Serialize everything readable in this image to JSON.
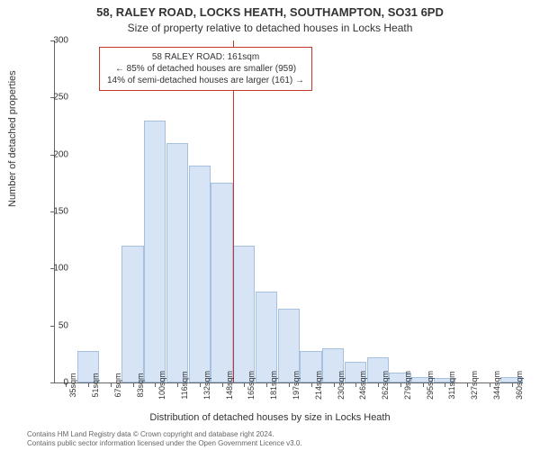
{
  "title_main": "58, RALEY ROAD, LOCKS HEATH, SOUTHAMPTON, SO31 6PD",
  "title_sub": "Size of property relative to detached houses in Locks Heath",
  "ylabel": "Number of detached properties",
  "xlabel": "Distribution of detached houses by size in Locks Heath",
  "chart": {
    "type": "histogram",
    "ylim": [
      0,
      300
    ],
    "ytick_step": 50,
    "xticks": [
      "35sqm",
      "51sqm",
      "67sqm",
      "83sqm",
      "100sqm",
      "116sqm",
      "132sqm",
      "148sqm",
      "165sqm",
      "181sqm",
      "197sqm",
      "214sqm",
      "230sqm",
      "246sqm",
      "262sqm",
      "279sqm",
      "295sqm",
      "311sqm",
      "327sqm",
      "344sqm",
      "360sqm"
    ],
    "values": [
      0,
      28,
      0,
      120,
      230,
      210,
      190,
      175,
      120,
      80,
      65,
      28,
      30,
      18,
      22,
      9,
      5,
      4,
      0,
      0,
      5
    ],
    "bar_color": "#d6e4f5",
    "bar_border": "#a6c1e0",
    "background_color": "#ffffff",
    "axis_color": "#666666",
    "ref_line_x_index": 8,
    "ref_line_color": "#c0392b"
  },
  "annotation": {
    "line1": "58 RALEY ROAD: 161sqm",
    "line2": "← 85% of detached houses are smaller (959)",
    "line3": "14% of semi-detached houses are larger (161) →",
    "border_color": "#c0392b"
  },
  "footer_line1": "Contains HM Land Registry data © Crown copyright and database right 2024.",
  "footer_line2": "Contains public sector information licensed under the Open Government Licence v3.0."
}
